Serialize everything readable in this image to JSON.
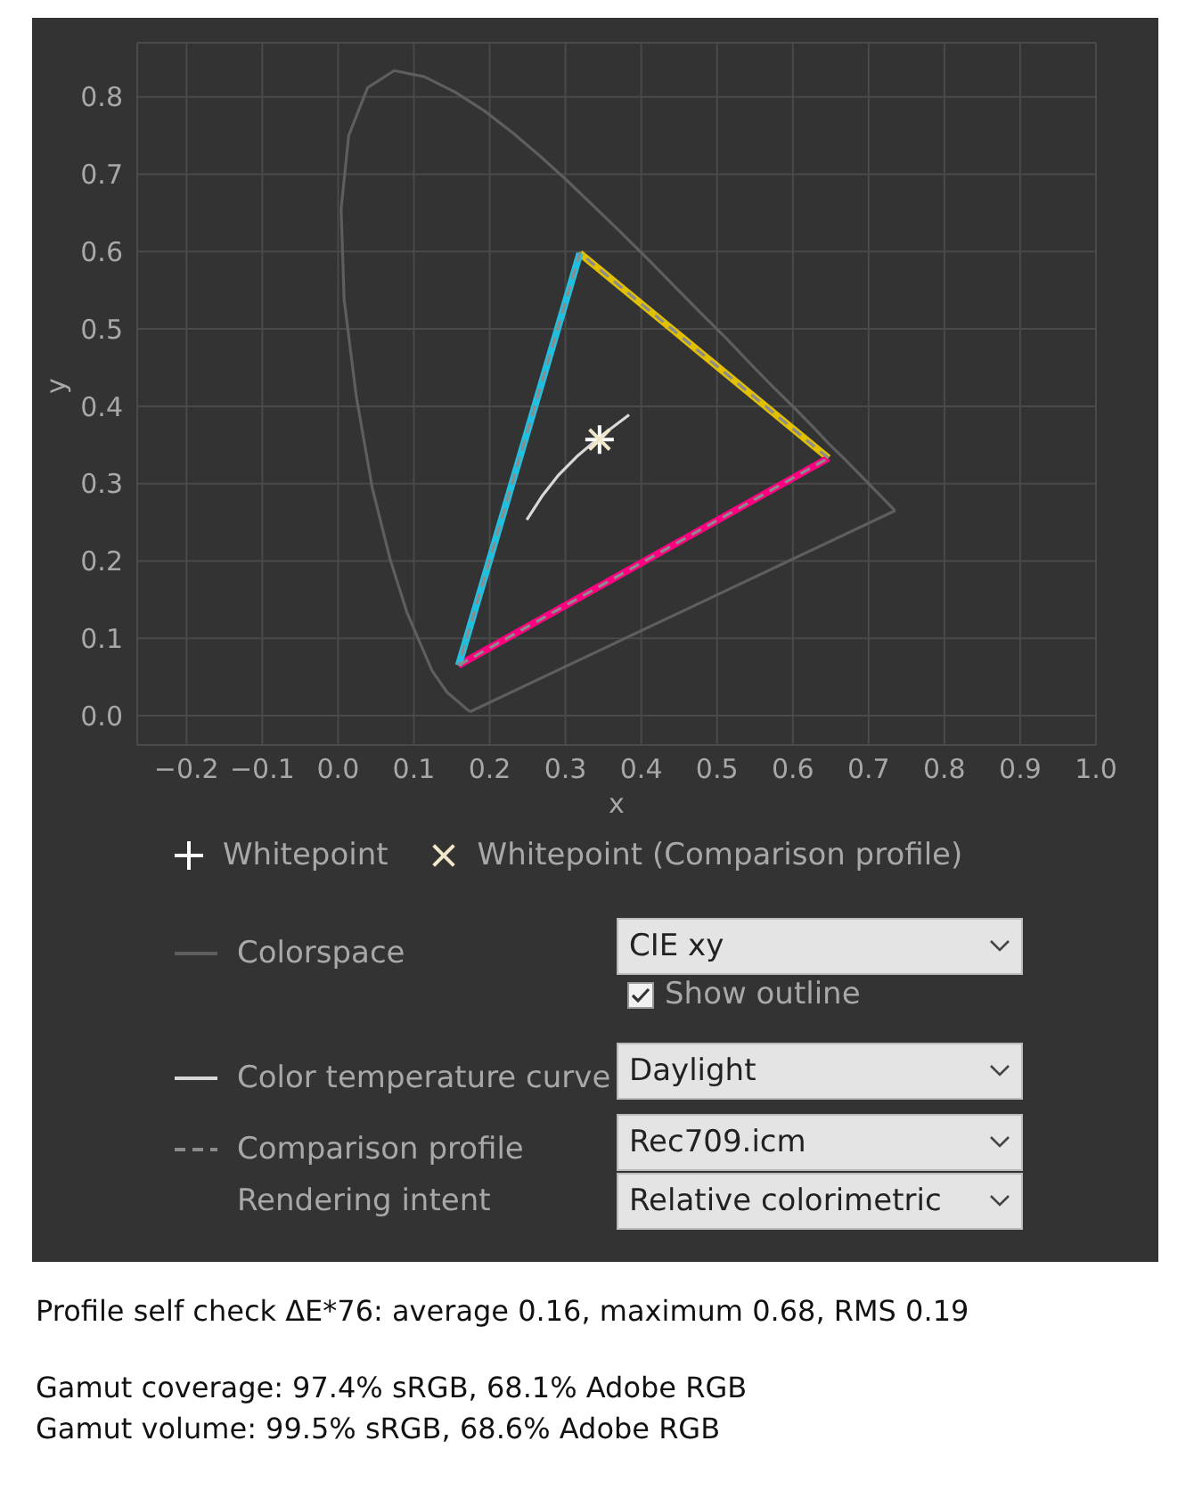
{
  "chart_data": {
    "type": "line",
    "xlabel": "x",
    "ylabel": "y",
    "xlim": [
      -0.265,
      1.0
    ],
    "ylim": [
      -0.038,
      0.87
    ],
    "xticks": [
      {
        "value": -0.2,
        "label": "−0.2"
      },
      {
        "value": -0.1,
        "label": "−0.1"
      },
      {
        "value": 0,
        "label": "0.0"
      },
      0.1,
      0.2,
      0.3,
      0.4,
      0.5,
      0.6,
      0.7,
      0.8,
      0.9,
      {
        "value": 1,
        "label": "1.0"
      }
    ],
    "yticks": [
      {
        "value": 0,
        "label": "0.0"
      },
      0.1,
      0.2,
      0.3,
      0.4,
      0.5,
      0.6,
      0.7,
      0.8
    ],
    "grid": true,
    "legend": "bottom",
    "series": [
      {
        "name": "Colorspace",
        "color": "#5e5e5e",
        "line_style": "solid",
        "x": [
          0.174,
          0.144,
          0.124,
          0.091,
          0.069,
          0.045,
          0.024,
          0.008,
          0.004,
          0.014,
          0.039,
          0.074,
          0.114,
          0.155,
          0.193,
          0.23,
          0.266,
          0.302,
          0.337,
          0.373,
          0.409,
          0.444,
          0.479,
          0.513,
          0.545,
          0.575,
          0.603,
          0.627,
          0.648,
          0.666,
          0.692,
          0.735
        ],
        "values": [
          0.005,
          0.03,
          0.058,
          0.133,
          0.201,
          0.295,
          0.413,
          0.538,
          0.655,
          0.75,
          0.812,
          0.834,
          0.826,
          0.806,
          0.782,
          0.754,
          0.724,
          0.692,
          0.659,
          0.625,
          0.59,
          0.555,
          0.52,
          0.487,
          0.454,
          0.424,
          0.397,
          0.373,
          0.351,
          0.334,
          0.308,
          0.265
        ]
      },
      {
        "color": "#5e5e5e",
        "line_style": "solid",
        "x": [
          0.735,
          0.174
        ],
        "values": [
          0.265,
          0.005
        ]
      },
      {
        "name": "Color temperature curve",
        "color": "#d8d8d8",
        "line_style": "solid",
        "x": [
          0.249,
          0.27,
          0.29,
          0.315,
          0.345,
          0.384
        ],
        "values": [
          0.253,
          0.285,
          0.31,
          0.335,
          0.36,
          0.389
        ]
      },
      {
        "color": "#e0c000",
        "x": [
          0.319,
          0.647
        ],
        "values": [
          0.598,
          0.333
        ]
      },
      {
        "color": "#ff0080",
        "x": [
          0.647,
          0.159
        ],
        "values": [
          0.333,
          0.065
        ]
      },
      {
        "color": "#20c0e0",
        "x": [
          0.159,
          0.319
        ],
        "values": [
          0.065,
          0.598
        ]
      },
      {
        "name": "Comparison profile",
        "color": "#8c8c8c",
        "line_style": "dashed",
        "x": [
          0.647,
          0.319,
          0.159
        ],
        "values": [
          0.333,
          0.598,
          0.065
        ]
      },
      {
        "color": "#8c8c8c",
        "line_style": "dashed",
        "x": [
          0.159,
          0.647
        ],
        "values": [
          0.065,
          0.333
        ]
      },
      {
        "name": "Whitepoint",
        "type": "scatter",
        "marker": "cross",
        "color": "#ffffff",
        "x": [
          0.345
        ],
        "values": [
          0.357
        ]
      },
      {
        "name": "Whitepoint (Comparison profile)",
        "type": "scatter",
        "marker": "cross",
        "color": "#f0e8c8",
        "x": [
          0.345
        ],
        "values": [
          0.357
        ]
      }
    ],
    "annotations": [
      "CIE xy",
      "Show outline",
      "Daylight",
      "Rec709.icm",
      "Rendering intent",
      "Relative colorimetric",
      "Profile self check ΔE*76: average 0.16, maximum 0.68, RMS 0.19",
      "Gamut coverage: 97.4% sRGB, 68.1% Adobe RGB",
      "Gamut volume: 99.5% sRGB, 68.6% Adobe RGB"
    ]
  }
}
